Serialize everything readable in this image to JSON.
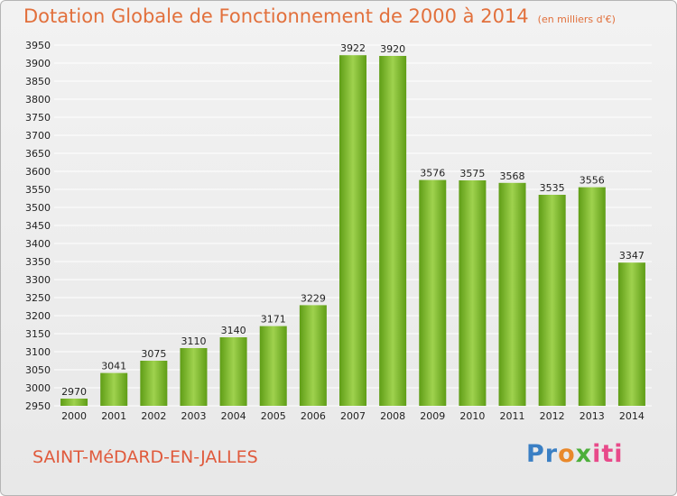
{
  "header": {
    "title": "Dotation Globale de Fonctionnement de 2000 à 2014",
    "subtitle": "(en milliers d'€)"
  },
  "footer": {
    "commune": "SAINT-MéDARD-EN-JALLES",
    "logo": [
      "Pr",
      "o",
      "x",
      "iti"
    ]
  },
  "colors": {
    "bar_top": "#9fd24e",
    "bar_bottom": "#5f9d16",
    "grid": "#ffffff",
    "axis_text": "#222222"
  },
  "chart_data": {
    "type": "bar",
    "title": "Dotation Globale de Fonctionnement de 2000 à 2014",
    "xlabel": "",
    "ylabel": "",
    "categories": [
      "2000",
      "2001",
      "2002",
      "2003",
      "2004",
      "2005",
      "2006",
      "2007",
      "2008",
      "2009",
      "2010",
      "2011",
      "2012",
      "2013",
      "2014"
    ],
    "values": [
      2970,
      3041,
      3075,
      3110,
      3140,
      3171,
      3229,
      3922,
      3920,
      3576,
      3575,
      3568,
      3535,
      3556,
      3347
    ],
    "ylim": [
      2950,
      3950
    ],
    "ytick_step": 50,
    "grid": true,
    "data_labels": true
  }
}
